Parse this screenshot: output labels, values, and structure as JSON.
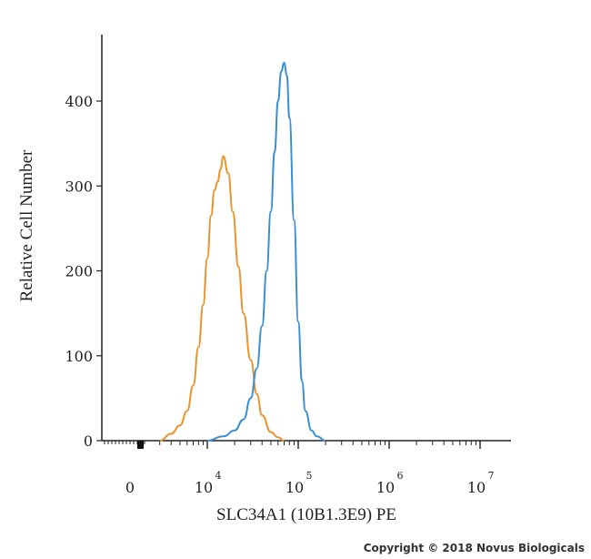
{
  "chart_data": {
    "type": "line",
    "xlabel": "SLC34A1 (10B1.3E9) PE",
    "ylabel": "Relative Cell Number",
    "x_scale": "log",
    "xlim": [
      0,
      10000000
    ],
    "ylim": [
      0,
      460
    ],
    "y_ticks": [
      "0",
      "100",
      "200",
      "300",
      "400"
    ],
    "x_ticks": [
      {
        "base": "0",
        "exp": ""
      },
      {
        "base": "10",
        "exp": "4"
      },
      {
        "base": "10",
        "exp": "5"
      },
      {
        "base": "10",
        "exp": "6"
      },
      {
        "base": "10",
        "exp": "7"
      }
    ],
    "series": [
      {
        "color": "#e8932e",
        "x": [
          3000,
          4000,
          5000,
          6000,
          7000,
          8000,
          9000,
          10000,
          11000,
          12000,
          13000,
          14000,
          15000,
          17000,
          19000,
          22000,
          25000,
          30000,
          35000,
          40000,
          50000,
          60000,
          70000
        ],
        "y": [
          0,
          8,
          18,
          35,
          65,
          110,
          160,
          215,
          265,
          295,
          305,
          320,
          335,
          315,
          270,
          205,
          150,
          95,
          55,
          30,
          10,
          4,
          0
        ]
      },
      {
        "color": "#3a8fd4",
        "x": [
          10000,
          15000,
          20000,
          25000,
          30000,
          35000,
          40000,
          45000,
          50000,
          55000,
          60000,
          65000,
          70000,
          75000,
          80000,
          90000,
          100000,
          110000,
          120000,
          140000,
          160000,
          200000
        ],
        "y": [
          0,
          5,
          12,
          25,
          50,
          85,
          135,
          200,
          270,
          340,
          400,
          435,
          445,
          430,
          380,
          260,
          140,
          70,
          35,
          12,
          5,
          0
        ]
      }
    ]
  },
  "copyright": "Copyright © 2018 Novus Biologicals"
}
